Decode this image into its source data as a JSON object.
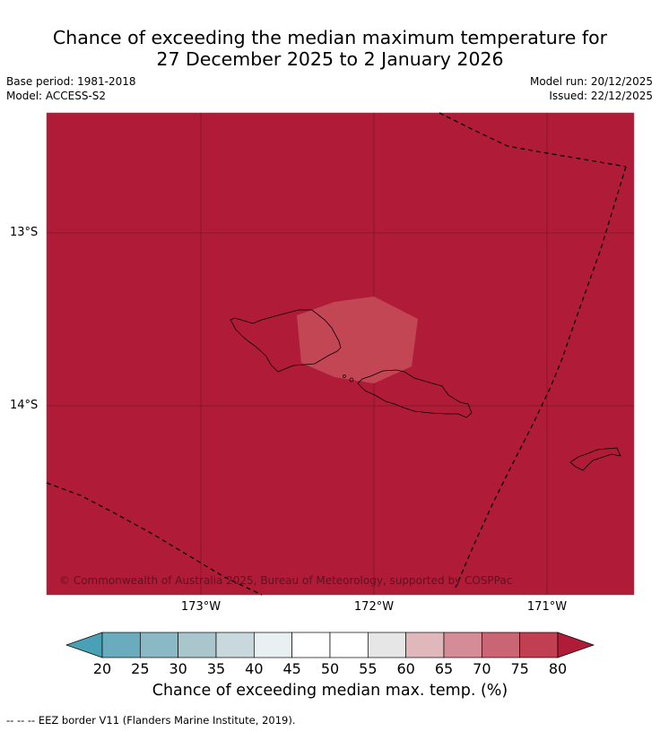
{
  "title": {
    "line1": "Chance of exceeding the median maximum temperature for",
    "line2": "27 December 2025 to 2 January 2026"
  },
  "meta": {
    "base_period": "Base period: 1981-2018",
    "model": "Model: ACCESS-S2",
    "model_run": "Model run: 20/12/2025",
    "issued": "Issued: 22/12/2025"
  },
  "map": {
    "lat_labels": [
      "13°S",
      "14°S"
    ],
    "lon_labels": [
      "173°W",
      "172°W",
      "171°W"
    ],
    "copyright": "© Commonwealth of Australia 2025, Bureau of Meteorology, supported by COSPPac",
    "fill_color": "#b01c38",
    "overlay_color": "#c34654",
    "grid_color": "#7d1428",
    "dominant_category": "80+"
  },
  "colorbar": {
    "ticks": [
      "20",
      "25",
      "30",
      "35",
      "40",
      "45",
      "50",
      "55",
      "60",
      "65",
      "70",
      "75",
      "80"
    ],
    "colors": [
      "#4aa0b4",
      "#6aacbe",
      "#8ab8c4",
      "#a8c6cc",
      "#c8d8dc",
      "#e9f0f1",
      "#ffffff",
      "#ffffff",
      "#e6e6e6",
      "#e0b8bc",
      "#d68c96",
      "#ca6674",
      "#c04052",
      "#b01c38"
    ],
    "label": "Chance of exceeding median max. temp. (%)"
  },
  "footer": "--  --  -- EEZ border V11 (Flanders Marine Institute, 2019)."
}
